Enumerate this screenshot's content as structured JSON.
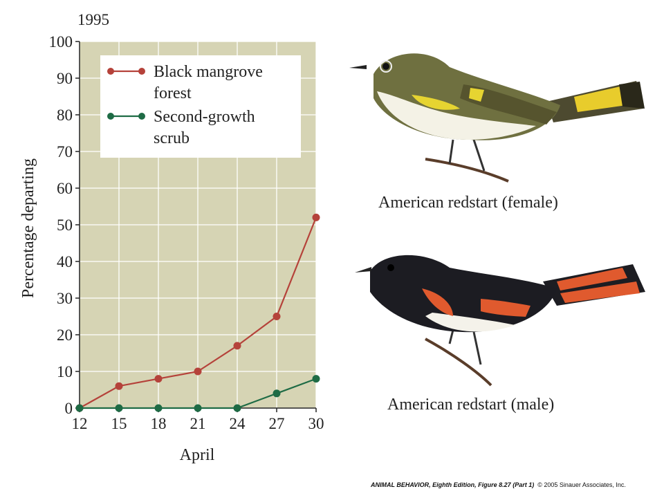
{
  "chart_data": {
    "type": "line",
    "title": "1995",
    "xlabel": "April",
    "ylabel": "Percentage departing",
    "x": [
      12,
      15,
      18,
      21,
      24,
      27,
      30
    ],
    "xticks": [
      "12",
      "15",
      "18",
      "21",
      "24",
      "27",
      "30"
    ],
    "yticks": [
      "0",
      "10",
      "20",
      "30",
      "40",
      "50",
      "60",
      "70",
      "80",
      "90",
      "100"
    ],
    "xlim": [
      12,
      30
    ],
    "ylim": [
      0,
      100
    ],
    "grid": true,
    "legend_position": "top-right",
    "background_color": "#d6d4b4",
    "series": [
      {
        "name": "Black mangrove forest",
        "label_lines": [
          "Black mangrove",
          "forest"
        ],
        "color": "#b5423a",
        "values": [
          0,
          6,
          8,
          10,
          17,
          25,
          52
        ]
      },
      {
        "name": "Second-growth scrub",
        "label_lines": [
          "Second-growth",
          "scrub"
        ],
        "color": "#1e6b45",
        "values": [
          0,
          0,
          0,
          0,
          0,
          4,
          8
        ]
      }
    ]
  },
  "illustrations": {
    "female_caption": "American redstart (female)",
    "male_caption": "American redstart (male)",
    "female_icon": "bird-redstart-female",
    "male_icon": "bird-redstart-male"
  },
  "footer": {
    "book": "ANIMAL BEHAVIOR",
    "edition": ", Eighth Edition",
    "figure": ", Figure 8.27 (Part 1)",
    "copyright": "© 2005 Sinauer Associates, Inc."
  }
}
